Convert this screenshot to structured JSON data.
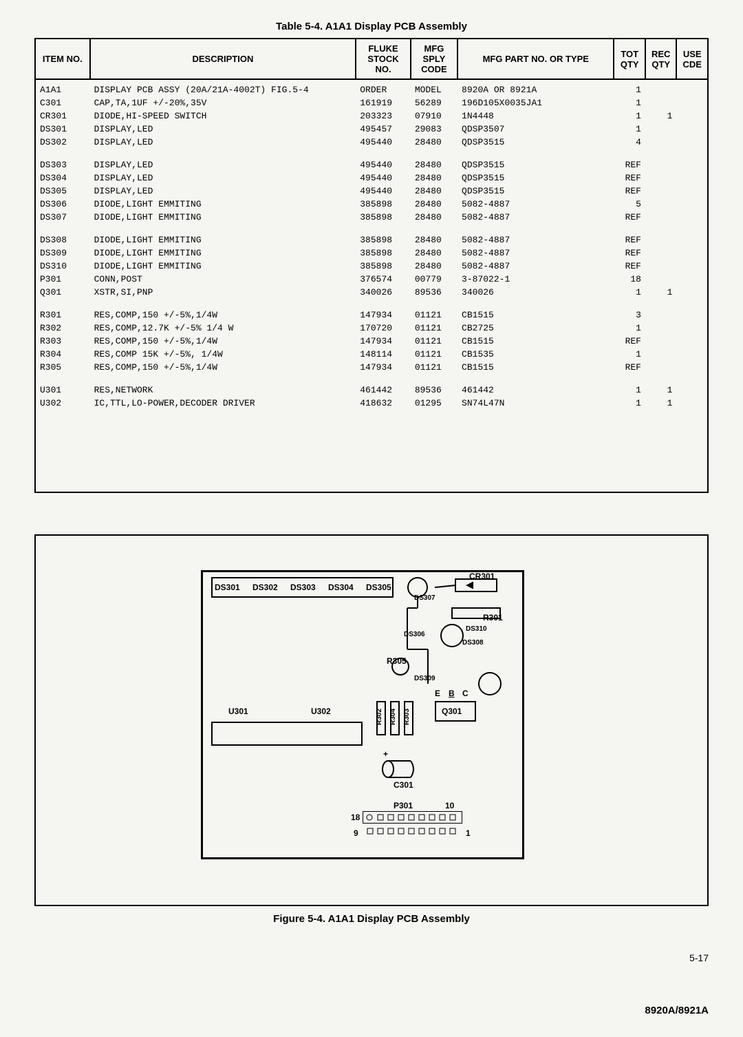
{
  "table_title": "Table 5-4. A1A1 Display PCB Assembly",
  "headers": {
    "item": "ITEM NO.",
    "desc": "DESCRIPTION",
    "fluke": "FLUKE STOCK NO.",
    "mfg_code": "MFG SPLY CODE",
    "mfg_part": "MFG PART NO. OR TYPE",
    "tot": "TOT QTY",
    "rec": "REC QTY",
    "use": "USE CDE"
  },
  "rows": [
    [
      {
        "item": "A1A1",
        "desc": "DISPLAY PCB ASSY (20A/21A-4002T) FIG.5-4",
        "fluke": "ORDER",
        "mfg": "MODEL",
        "part": "8920A OR 8921A",
        "tot": "1",
        "rec": "",
        "use": ""
      },
      {
        "item": "C301",
        "desc": "CAP,TA,1UF +/-20%,35V",
        "fluke": "161919",
        "mfg": "56289",
        "part": "196D105X0035JA1",
        "tot": "1",
        "rec": "",
        "use": ""
      },
      {
        "item": "CR301",
        "desc": "DIODE,HI-SPEED SWITCH",
        "fluke": "203323",
        "mfg": "07910",
        "part": "1N4448",
        "tot": "1",
        "rec": "1",
        "use": ""
      },
      {
        "item": "DS301",
        "desc": "DISPLAY,LED",
        "fluke": "495457",
        "mfg": "29083",
        "part": "QDSP3507",
        "tot": "1",
        "rec": "",
        "use": ""
      },
      {
        "item": "DS302",
        "desc": "DISPLAY,LED",
        "fluke": "495440",
        "mfg": "28480",
        "part": "QDSP3515",
        "tot": "4",
        "rec": "",
        "use": ""
      }
    ],
    [
      {
        "item": "DS303",
        "desc": "DISPLAY,LED",
        "fluke": "495440",
        "mfg": "28480",
        "part": "QDSP3515",
        "tot": "REF",
        "rec": "",
        "use": ""
      },
      {
        "item": "DS304",
        "desc": "DISPLAY,LED",
        "fluke": "495440",
        "mfg": "28480",
        "part": "QDSP3515",
        "tot": "REF",
        "rec": "",
        "use": ""
      },
      {
        "item": "DS305",
        "desc": "DISPLAY,LED",
        "fluke": "495440",
        "mfg": "28480",
        "part": "QDSP3515",
        "tot": "REF",
        "rec": "",
        "use": ""
      },
      {
        "item": "DS306",
        "desc": "DIODE,LIGHT EMMITING",
        "fluke": "385898",
        "mfg": "28480",
        "part": "5082-4887",
        "tot": "5",
        "rec": "",
        "use": ""
      },
      {
        "item": "DS307",
        "desc": "DIODE,LIGHT EMMITING",
        "fluke": "385898",
        "mfg": "28480",
        "part": "5082-4887",
        "tot": "REF",
        "rec": "",
        "use": ""
      }
    ],
    [
      {
        "item": "DS308",
        "desc": "DIODE,LIGHT EMMITING",
        "fluke": "385898",
        "mfg": "28480",
        "part": "5082-4887",
        "tot": "REF",
        "rec": "",
        "use": ""
      },
      {
        "item": "DS309",
        "desc": "DIODE,LIGHT EMMITING",
        "fluke": "385898",
        "mfg": "28480",
        "part": "5082-4887",
        "tot": "REF",
        "rec": "",
        "use": ""
      },
      {
        "item": "DS310",
        "desc": "DIODE,LIGHT EMMITING",
        "fluke": "385898",
        "mfg": "28480",
        "part": "5082-4887",
        "tot": "REF",
        "rec": "",
        "use": ""
      },
      {
        "item": "P301",
        "desc": "CONN,POST",
        "fluke": "376574",
        "mfg": "00779",
        "part": "3-87022-1",
        "tot": "18",
        "rec": "",
        "use": ""
      },
      {
        "item": "Q301",
        "desc": "XSTR,SI,PNP",
        "fluke": "340026",
        "mfg": "89536",
        "part": "340026",
        "tot": "1",
        "rec": "1",
        "use": ""
      }
    ],
    [
      {
        "item": "R301",
        "desc": "RES,COMP,150 +/-5%,1/4W",
        "fluke": "147934",
        "mfg": "01121",
        "part": "CB1515",
        "tot": "3",
        "rec": "",
        "use": ""
      },
      {
        "item": "R302",
        "desc": "RES,COMP,12.7K +/-5% 1/4 W",
        "fluke": "170720",
        "mfg": "01121",
        "part": "CB2725",
        "tot": "1",
        "rec": "",
        "use": ""
      },
      {
        "item": "R303",
        "desc": "RES,COMP,150 +/-5%,1/4W",
        "fluke": "147934",
        "mfg": "01121",
        "part": "CB1515",
        "tot": "REF",
        "rec": "",
        "use": ""
      },
      {
        "item": "R304",
        "desc": "RES,COMP 15K +/-5%, 1/4W",
        "fluke": "148114",
        "mfg": "01121",
        "part": "CB1535",
        "tot": "1",
        "rec": "",
        "use": ""
      },
      {
        "item": "R305",
        "desc": "RES,COMP,150 +/-5%,1/4W",
        "fluke": "147934",
        "mfg": "01121",
        "part": "CB1515",
        "tot": "REF",
        "rec": "",
        "use": ""
      }
    ],
    [
      {
        "item": "U301",
        "desc": "RES,NETWORK",
        "fluke": "461442",
        "mfg": "89536",
        "part": "461442",
        "tot": "1",
        "rec": "1",
        "use": ""
      },
      {
        "item": "U302",
        "desc": "IC,TTL,LO-POWER,DECODER DRIVER",
        "fluke": "418632",
        "mfg": "01295",
        "part": "SN74L47N",
        "tot": "1",
        "rec": "1",
        "use": ""
      }
    ]
  ],
  "figure_caption": "Figure 5-4. A1A1 Display PCB Assembly",
  "page_number": "5-17",
  "footer": "8920A/8921A",
  "pcb_labels": {
    "ds301": "DS301",
    "ds302": "DS302",
    "ds303": "DS303",
    "ds304": "DS304",
    "ds305": "DS305",
    "ds306": "DS306",
    "ds307": "DS307",
    "ds308": "DS308",
    "ds309": "DS309",
    "ds310": "DS310",
    "cr301": "CR301",
    "r301": "R301",
    "r302": "R302",
    "r303": "R303",
    "r304": "R304",
    "r305": "R305",
    "u301": "U301",
    "u302": "U302",
    "q301": "Q301",
    "c301": "C301",
    "p301": "P301",
    "e": "E",
    "b": "B",
    "c": "C",
    "plus": "+",
    "pin18": "18",
    "pin10": "10",
    "pin9": "9",
    "pin1": "1"
  }
}
